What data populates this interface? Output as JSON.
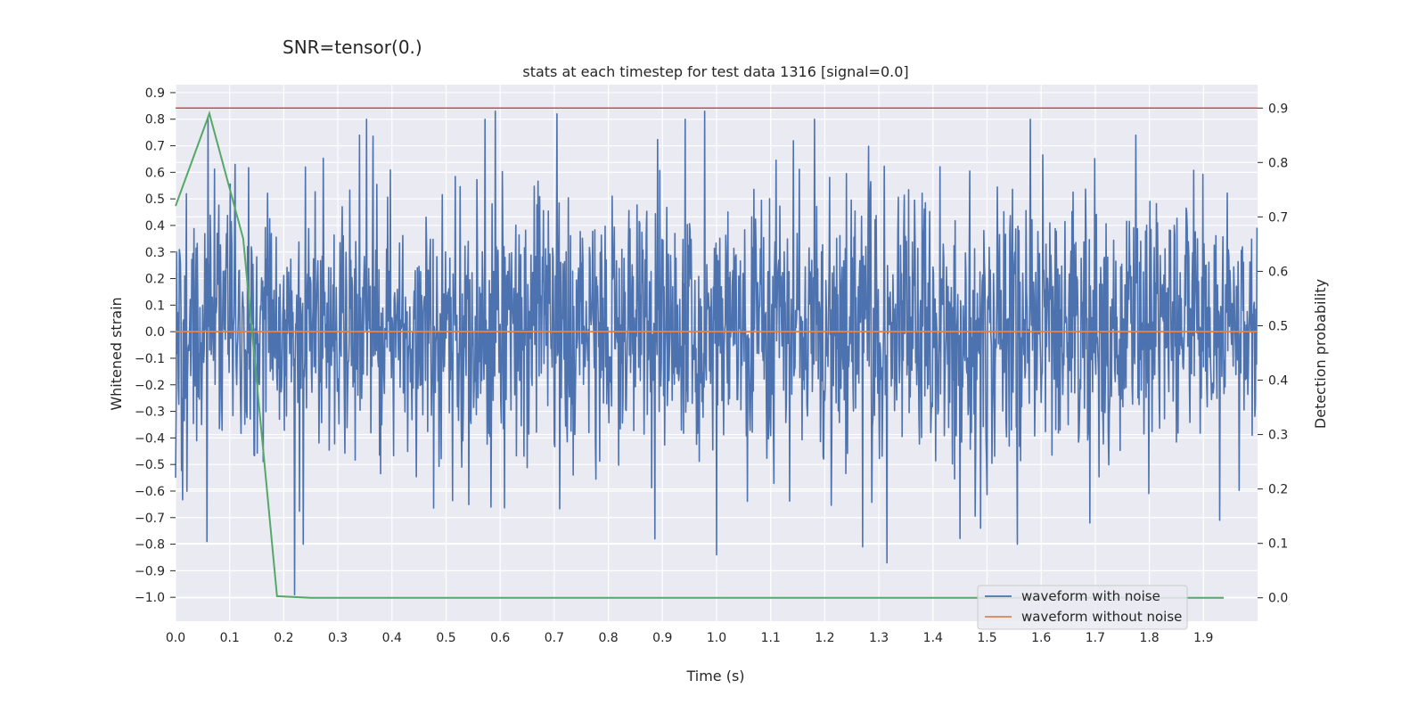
{
  "chart_data": {
    "type": "line",
    "suptitle": "SNR=tensor(0.)",
    "title": "stats at each timestep for test data 1316 [signal=0.0]",
    "xlabel": "Time (s)",
    "ylabel": "Whitened strain",
    "y2label": "Detection probability",
    "xlim": [
      0.0,
      2.0
    ],
    "ylim": [
      -1.09,
      0.93
    ],
    "y2lim": [
      -0.043,
      0.943
    ],
    "grid": true,
    "legend_position": "lower-right",
    "x_tick_labels": [
      "0.0",
      "0.1",
      "0.2",
      "0.3",
      "0.4",
      "0.5",
      "0.6",
      "0.7",
      "0.8",
      "0.9",
      "1.0",
      "1.1",
      "1.2",
      "1.3",
      "1.4",
      "1.5",
      "1.6",
      "1.7",
      "1.8",
      "1.9"
    ],
    "y_tick_labels": [
      "0.9",
      "0.8",
      "0.7",
      "0.6",
      "0.5",
      "0.4",
      "0.3",
      "0.2",
      "0.1",
      "0.0",
      "−0.1",
      "−0.2",
      "−0.3",
      "−0.4",
      "−0.5",
      "−0.6",
      "−0.7",
      "−0.8",
      "−0.9",
      "−1.0"
    ],
    "y2_tick_labels": [
      "0.9",
      "0.8",
      "0.7",
      "0.6",
      "0.5",
      "0.4",
      "0.3",
      "0.2",
      "0.1",
      "0.0"
    ],
    "noisy_waveform": {
      "name": "waveform with noise",
      "color": "#4c72b0",
      "sample_count": 2000,
      "dt": 0.001,
      "notable_peaks": [
        {
          "t": 0.0,
          "v": -0.55
        },
        {
          "t": 0.06,
          "v": 0.81
        },
        {
          "t": 0.058,
          "v": -0.79
        },
        {
          "t": 0.11,
          "v": 0.63
        },
        {
          "t": 0.22,
          "v": -0.99
        },
        {
          "t": 0.24,
          "v": 0.62
        },
        {
          "t": 0.34,
          "v": 0.74
        },
        {
          "t": 0.591,
          "v": 0.83
        },
        {
          "t": 0.583,
          "v": -0.66
        },
        {
          "t": 0.705,
          "v": 0.82
        },
        {
          "t": 0.978,
          "v": 0.83
        },
        {
          "t": 1.0,
          "v": -0.84
        },
        {
          "t": 1.27,
          "v": -0.81
        },
        {
          "t": 1.315,
          "v": -0.87
        },
        {
          "t": 1.69,
          "v": -0.72
        },
        {
          "t": 1.775,
          "v": 0.74
        },
        {
          "t": 1.93,
          "v": -0.71
        }
      ]
    },
    "clean_waveform": {
      "name": "waveform without noise",
      "color": "#dd8452",
      "x": [
        0.0,
        2.0
      ],
      "y": [
        0.0,
        0.0
      ]
    },
    "detection_probability": {
      "name": "detection probability",
      "color": "#55a868",
      "x": [
        0.0,
        0.0625,
        0.125,
        0.1875,
        0.25,
        1.9375
      ],
      "y": [
        0.72,
        0.89,
        0.66,
        0.003,
        0.0,
        0.0
      ]
    },
    "threshold": {
      "color": "#c44e52",
      "value": 0.9
    }
  }
}
